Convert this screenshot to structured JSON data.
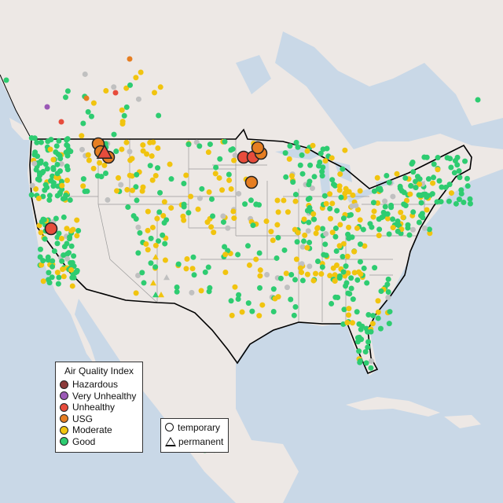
{
  "legend": {
    "title": "Air Quality Index",
    "categories": [
      {
        "label": "Hazardous",
        "color": "#8b3a3a"
      },
      {
        "label": "Very Unhealthy",
        "color": "#9b59b6"
      },
      {
        "label": "Unhealthy",
        "color": "#e74c3c"
      },
      {
        "label": "USG",
        "color": "#e67e22"
      },
      {
        "label": "Moderate",
        "color": "#f1c40f"
      },
      {
        "label": "Good",
        "color": "#2ecc71"
      }
    ]
  },
  "monitor_legend": {
    "temporary": "temporary",
    "permanent": "permanent"
  },
  "colors": {
    "water": "#c9d8e7",
    "land": "#ede8e5",
    "no_data": "#c0c0c0",
    "border": "#000000",
    "state_lines": "#9a9a9a"
  }
}
